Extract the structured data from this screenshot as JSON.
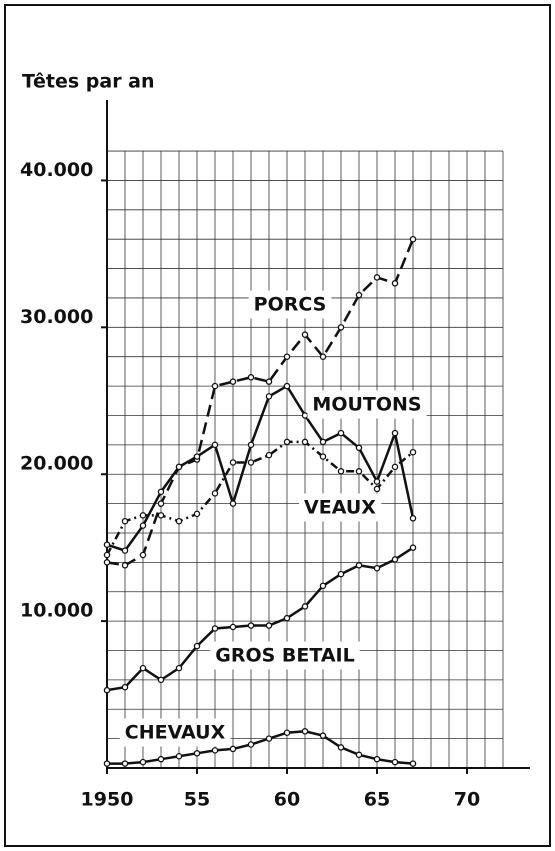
{
  "chart_data": {
    "type": "line",
    "y_axis_label": "Têtes par an",
    "x": [
      1950,
      1951,
      1952,
      1953,
      1954,
      1955,
      1956,
      1957,
      1958,
      1959,
      1960,
      1961,
      1962,
      1963,
      1964,
      1965,
      1966,
      1967
    ],
    "series": [
      {
        "name": "PORCS",
        "color": "#111111",
        "dash": "12 6",
        "markers": true,
        "values": [
          14000,
          13800,
          14500,
          18000,
          20500,
          21000,
          26000,
          26300,
          26600,
          26300,
          28000,
          29500,
          28000,
          30000,
          32200,
          33400,
          33000,
          36000
        ]
      },
      {
        "name": "MOUTONS",
        "color": "#111111",
        "dash": "none",
        "markers": true,
        "values": [
          15200,
          14800,
          16500,
          18800,
          20500,
          21200,
          22000,
          18000,
          22000,
          25300,
          26000,
          24000,
          22200,
          22800,
          21800,
          19500,
          22800,
          17000
        ]
      },
      {
        "name": "VEAUX",
        "color": "#111111",
        "dash": "8 4 2 4",
        "markers": true,
        "values": [
          14500,
          16800,
          17200,
          17200,
          16800,
          17300,
          18700,
          20800,
          20800,
          21300,
          22200,
          22200,
          21200,
          20200,
          20200,
          19000,
          20500,
          21500
        ]
      },
      {
        "name": "GROS BETAIL",
        "color": "#111111",
        "dash": "none",
        "markers": true,
        "values": [
          5300,
          5500,
          6800,
          6000,
          6800,
          8300,
          9500,
          9600,
          9700,
          9700,
          10200,
          11000,
          12400,
          13200,
          13800,
          13600,
          14200,
          15000
        ]
      },
      {
        "name": "CHEVAUX",
        "color": "#111111",
        "dash": "none",
        "markers": true,
        "values": [
          300,
          300,
          400,
          600,
          800,
          1000,
          1200,
          1300,
          1600,
          2000,
          2400,
          2500,
          2200,
          1400,
          900,
          600,
          400,
          300
        ]
      }
    ],
    "xlim": [
      1950,
      1973.5
    ],
    "ylim": [
      0,
      45000
    ],
    "xticks": [
      1950,
      {
        "value": 1955,
        "label": "55"
      },
      {
        "value": 1960,
        "label": "60"
      },
      {
        "value": 1965,
        "label": "65"
      },
      {
        "value": 1970,
        "label": "70"
      }
    ],
    "yticks": [
      {
        "value": 10000,
        "label": "10.000"
      },
      {
        "value": 20000,
        "label": "20.000"
      },
      {
        "value": 30000,
        "label": "30.000"
      },
      {
        "value": 40000,
        "label": "40.000"
      }
    ],
    "x_grid": [
      1951,
      1952,
      1953,
      1954,
      1955,
      1956,
      1957,
      1958,
      1959,
      1960,
      1961,
      1962,
      1963,
      1964,
      1965,
      1966,
      1967,
      1968,
      1969,
      1970,
      1971,
      1972
    ],
    "y_grid": [
      2000,
      4000,
      6000,
      8000,
      10000,
      12000,
      14000,
      16000,
      18000,
      20000,
      22000,
      24000,
      26000,
      28000,
      30000,
      32000,
      34000,
      36000,
      38000,
      40000,
      42000
    ],
    "grid": true
  }
}
